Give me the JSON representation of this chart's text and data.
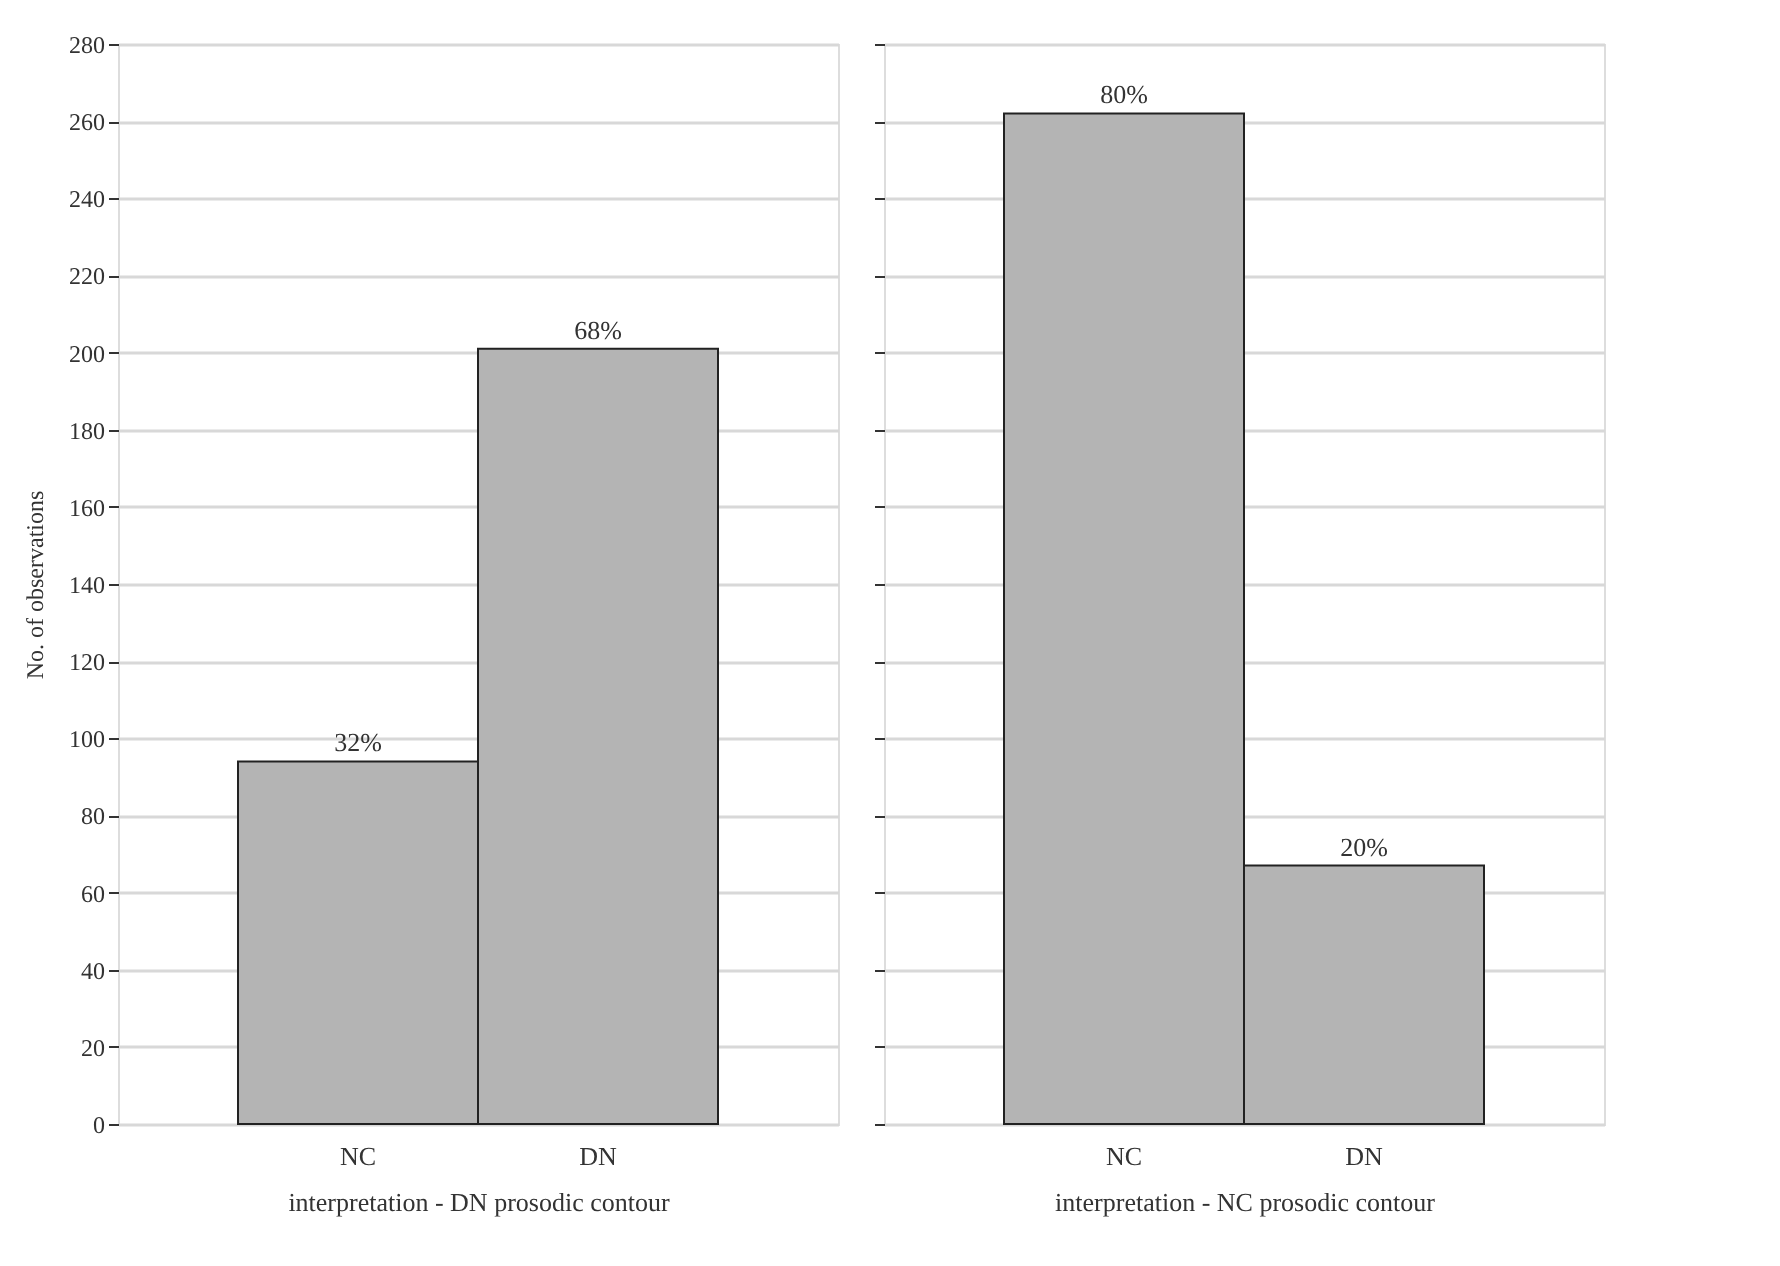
{
  "chart_data": [
    {
      "type": "bar",
      "ylabel": "No. of observations",
      "xlabel": "interpretation - DN prosodic contour",
      "categories": [
        "NC",
        "DN"
      ],
      "values": [
        94,
        201
      ],
      "color": "#b4b4b4",
      "ylim": [
        0,
        280
      ],
      "yticks": [
        0,
        20,
        40,
        60,
        80,
        100,
        120,
        140,
        160,
        180,
        200,
        220,
        240,
        260,
        280
      ],
      "grid": "y",
      "annotations": [
        {
          "text": "32%",
          "x": "NC",
          "y": 94
        },
        {
          "text": "68%",
          "x": "DN",
          "y": 201
        }
      ]
    },
    {
      "type": "bar",
      "xlabel": "interpretation - NC prosodic contour",
      "categories": [
        "NC",
        "DN"
      ],
      "values": [
        262,
        67
      ],
      "color": "#b4b4b4",
      "ylim": [
        0,
        280
      ],
      "yticks": [
        0,
        20,
        40,
        60,
        80,
        100,
        120,
        140,
        160,
        180,
        200,
        220,
        240,
        260,
        280
      ],
      "grid": "y",
      "tick_labels": "x",
      "annotations": [
        {
          "text": "80%",
          "x": "NC",
          "y": 262
        },
        {
          "text": "20%",
          "x": "DN",
          "y": 67
        }
      ]
    }
  ]
}
